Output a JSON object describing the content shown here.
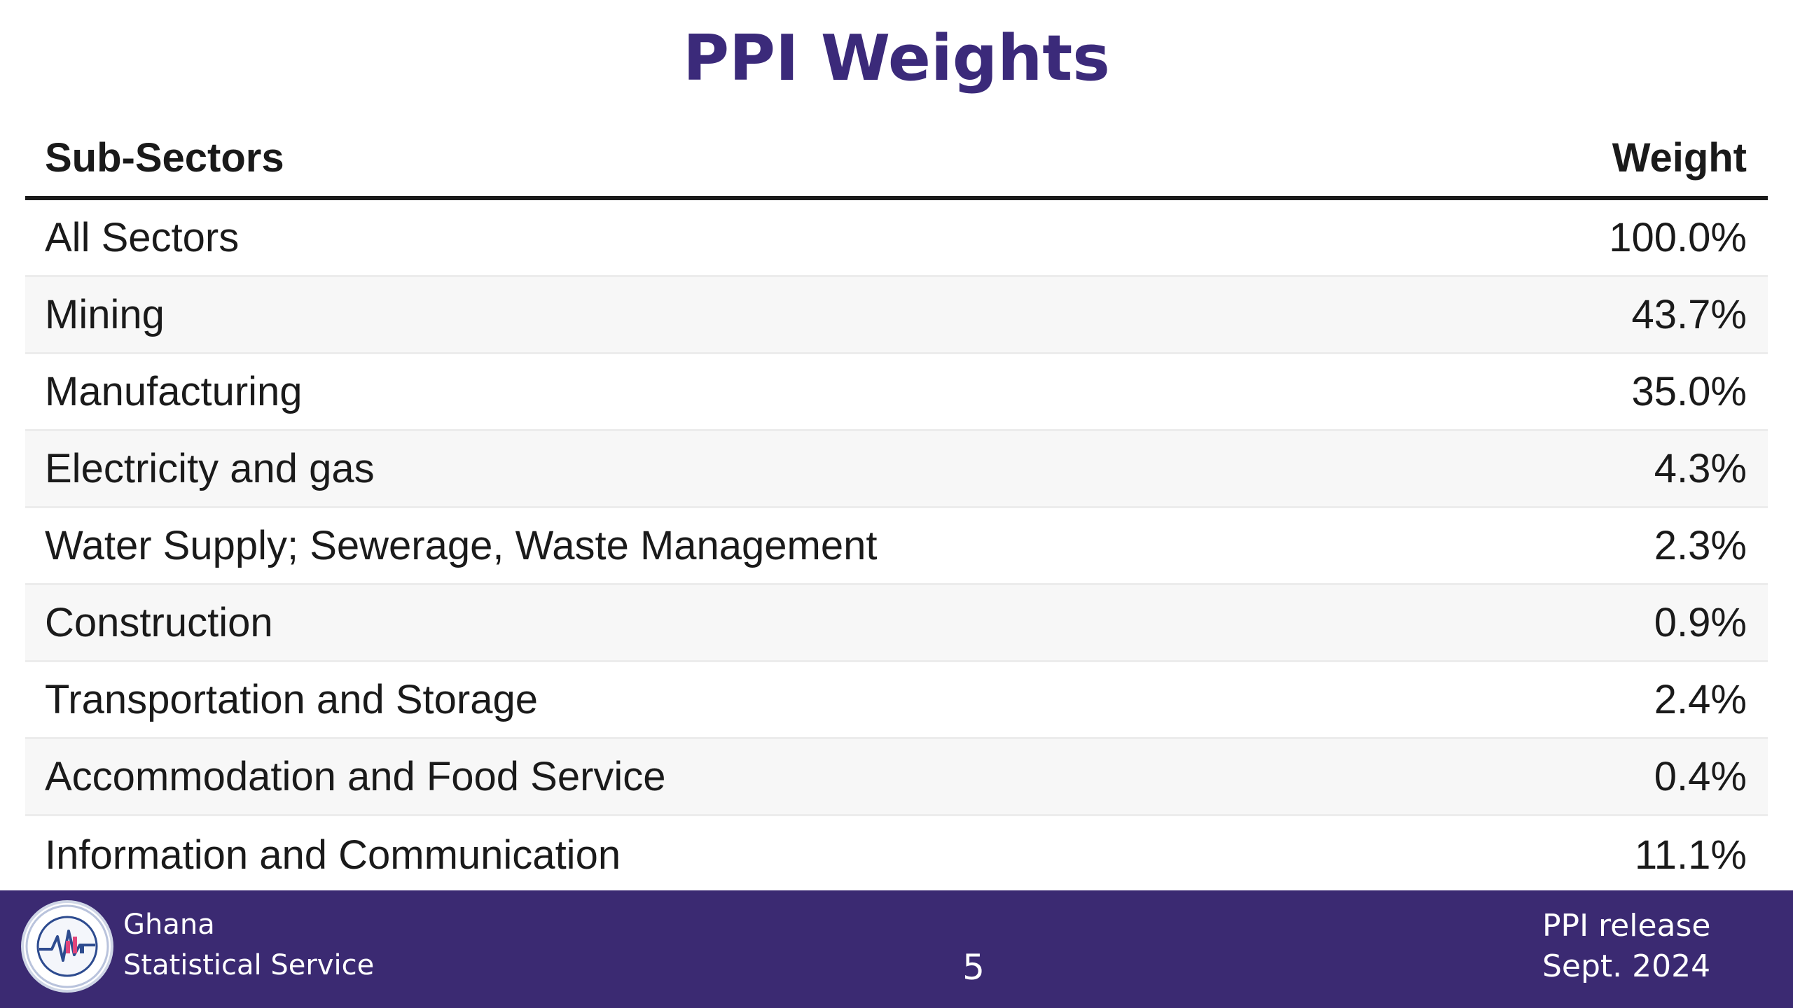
{
  "slide": {
    "title": "PPI Weights"
  },
  "table": {
    "headers": {
      "sector": "Sub-Sectors",
      "weight": "Weight"
    },
    "rows": [
      {
        "sector": "All Sectors",
        "weight": "100.0%"
      },
      {
        "sector": "Mining",
        "weight": "43.7%"
      },
      {
        "sector": "Manufacturing",
        "weight": "35.0%"
      },
      {
        "sector": "Electricity and gas",
        "weight": "4.3%"
      },
      {
        "sector": "Water Supply; Sewerage, Waste Management",
        "weight": "2.3%"
      },
      {
        "sector": "Construction",
        "weight": "0.9%"
      },
      {
        "sector": "Transportation and Storage",
        "weight": "2.4%"
      },
      {
        "sector": "Accommodation and Food Service",
        "weight": "0.4%"
      },
      {
        "sector": "Information and Communication",
        "weight": "11.1%"
      }
    ]
  },
  "footer": {
    "org_line1": "Ghana",
    "org_line2": "Statistical Service",
    "page_number": "5",
    "release_line1": "PPI release",
    "release_line2": "Sept. 2024",
    "logo_text": "STATISTICAL SERVICE GHANA"
  },
  "colors": {
    "title": "#3b2a7a",
    "footer_bg": "#3b2a72",
    "logo_accent": "#e0457b",
    "logo_line": "#2d4b8f"
  },
  "icons": {
    "logo": "gss-seal-icon"
  }
}
